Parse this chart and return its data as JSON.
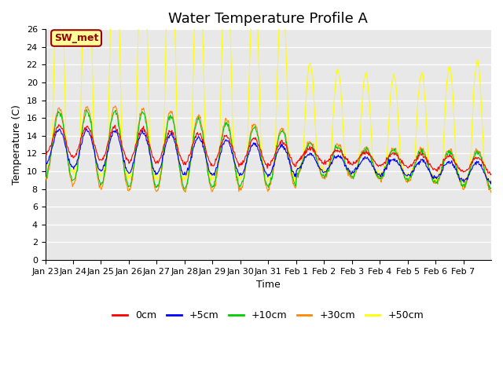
{
  "title": "Water Temperature Profile A",
  "xlabel": "Time",
  "ylabel": "Temperature (C)",
  "ylim": [
    0,
    26
  ],
  "yticks": [
    0,
    2,
    4,
    6,
    8,
    10,
    12,
    14,
    16,
    18,
    20,
    22,
    24,
    26
  ],
  "x_labels": [
    "Jan 23",
    "Jan 24",
    "Jan 25",
    "Jan 26",
    "Jan 27",
    "Jan 28",
    "Jan 29",
    "Jan 30",
    "Jan 31",
    "Feb 1",
    "Feb 2",
    "Feb 3",
    "Feb 4",
    "Feb 5",
    "Feb 6",
    "Feb 7"
  ],
  "legend_labels": [
    "0cm",
    "+5cm",
    "+10cm",
    "+30cm",
    "+50cm"
  ],
  "legend_colors": [
    "#ff0000",
    "#0000ff",
    "#00cc00",
    "#ff8800",
    "#ffff00"
  ],
  "annotation_text": "SW_met",
  "annotation_bg": "#ffff99",
  "annotation_fg": "#990000",
  "plot_bg": "#e8e8e8",
  "fig_bg": "#ffffff",
  "grid_color": "#ffffff",
  "title_fontsize": 13,
  "axis_fontsize": 9,
  "tick_fontsize": 8
}
